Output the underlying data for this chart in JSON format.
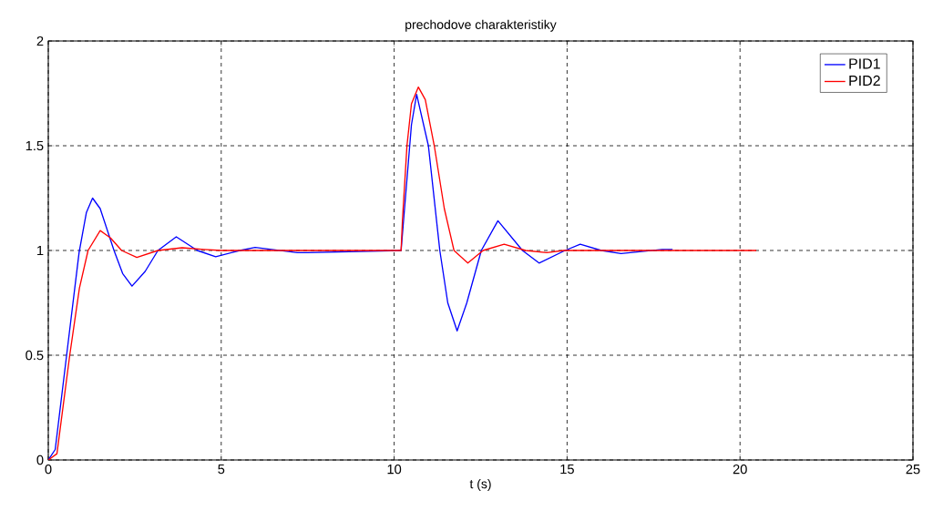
{
  "chart_data": {
    "type": "line",
    "title": "prechodove charakteristiky",
    "xlabel": "t (s)",
    "xlim": [
      0,
      25
    ],
    "ylim": [
      0,
      2
    ],
    "xticks": [
      0,
      5,
      10,
      15,
      20,
      25
    ],
    "yticks": [
      0,
      0.5,
      1,
      1.5,
      2
    ],
    "grid": true,
    "legend": "top right",
    "line_style": "solid",
    "marker": "none",
    "series": [
      {
        "name": "PID1",
        "color": "#0000ff",
        "x": [
          0,
          0.2,
          0.53,
          0.89,
          1.1,
          1.28,
          1.5,
          1.9,
          2.15,
          2.42,
          2.8,
          3.17,
          3.7,
          4.31,
          4.84,
          5.54,
          5.98,
          7.2,
          7.5,
          10.2,
          10.35,
          10.5,
          10.65,
          10.99,
          11.32,
          11.55,
          11.82,
          12.1,
          12.52,
          13.0,
          13.71,
          14.19,
          14.94,
          15.38,
          15.99,
          16.56,
          17.75,
          18.05
        ],
        "values": [
          0,
          0.05,
          0.5,
          0.99,
          1.18,
          1.25,
          1.2,
          1.0,
          0.89,
          0.83,
          0.9,
          1.0,
          1.065,
          1.0,
          0.97,
          1.0,
          1.015,
          0.99,
          0.99,
          1.0,
          1.3,
          1.6,
          1.745,
          1.5,
          1.0,
          0.75,
          0.616,
          0.75,
          1.0,
          1.142,
          1.0,
          0.94,
          1.0,
          1.03,
          1.0,
          0.985,
          1.005,
          1.005
        ]
      },
      {
        "name": "PID2",
        "color": "#ff0000",
        "x": [
          0,
          0.25,
          0.62,
          0.9,
          1.15,
          1.5,
          1.8,
          2.12,
          2.56,
          3.17,
          3.87,
          4.5,
          5.0,
          10.2,
          10.24,
          10.37,
          10.5,
          10.7,
          10.9,
          11.16,
          11.45,
          11.73,
          12.13,
          12.57,
          13.18,
          13.8,
          14.41,
          14.9,
          20.47
        ],
        "values": [
          0,
          0.03,
          0.5,
          0.82,
          1.0,
          1.095,
          1.06,
          1.0,
          0.967,
          1.0,
          1.013,
          1.005,
          1.0,
          1.0,
          1.145,
          1.5,
          1.7,
          1.78,
          1.72,
          1.5,
          1.2,
          1.0,
          0.94,
          1.0,
          1.03,
          1.0,
          0.99,
          1.0,
          1.0
        ]
      }
    ]
  }
}
